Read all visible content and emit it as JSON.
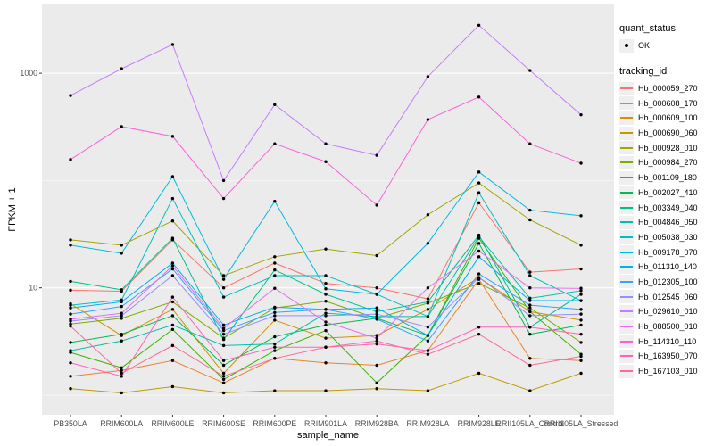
{
  "figure": {
    "background": "#ffffff",
    "panel_background": "#ebebeb",
    "grid_color": "#ffffff",
    "tick_label_color": "#4d4d4d",
    "point_color": "#000000"
  },
  "legend": {
    "quant_status": {
      "title": "quant_status",
      "items": [
        {
          "label": "OK"
        }
      ]
    },
    "tracking": {
      "title": "tracking_id"
    }
  },
  "chart_data": {
    "type": "line",
    "title": "",
    "xlabel": "sample_name",
    "ylabel": "FPKM + 1",
    "y_scale": "log10",
    "y_ticks": [
      10,
      1000
    ],
    "y_minor": [
      1,
      100
    ],
    "ylim_log": [
      1,
      3162
    ],
    "grid": true,
    "legend_position": "right",
    "point_shape": "filled-circle",
    "categories": [
      "PB350LA",
      "RRIM600LA",
      "RRIM600LE",
      "RRIM600SE",
      "RRIM600PE",
      "RRIM901LA",
      "RRIM928BA",
      "RRIM928LA",
      "RRIM928LE",
      "RRII105LA_Control",
      "RRII105LA_Stressed"
    ],
    "series": [
      {
        "name": "Hb_000059_270",
        "color": "#F8766D",
        "values": [
          9.5,
          9.3,
          28,
          10,
          17,
          11,
          10,
          7.9,
          62,
          14,
          15
        ]
      },
      {
        "name": "Hb_000608_170",
        "color": "#EA8331",
        "values": [
          1.5,
          1.7,
          2.1,
          1.3,
          2.2,
          2.0,
          1.9,
          2.6,
          12,
          2.2,
          2.1
        ]
      },
      {
        "name": "Hb_000609_100",
        "color": "#D89000",
        "values": [
          7.1,
          3.6,
          6.3,
          1.6,
          5.0,
          3.4,
          3.6,
          6.3,
          12.5,
          6.0,
          5.0
        ]
      },
      {
        "name": "Hb_000690_060",
        "color": "#C09B00",
        "values": [
          1.15,
          1.05,
          1.2,
          1.05,
          1.1,
          1.1,
          1.15,
          1.1,
          1.6,
          1.1,
          1.6
        ]
      },
      {
        "name": "Hb_000928_010",
        "color": "#A3A500",
        "values": [
          28,
          25,
          42,
          13,
          19.5,
          23,
          20,
          48,
          95,
          43,
          25
        ]
      },
      {
        "name": "Hb_000984_270",
        "color": "#7CAE00",
        "values": [
          4.6,
          5.2,
          7.4,
          3.4,
          6.5,
          7.5,
          5.2,
          7.2,
          11,
          6.5,
          3.1
        ]
      },
      {
        "name": "Hb_001109_180",
        "color": "#39B600",
        "values": [
          2.5,
          1.8,
          4.1,
          1.4,
          2.6,
          4.0,
          1.3,
          3.6,
          29,
          6.0,
          2.4
        ]
      },
      {
        "name": "Hb_002027_410",
        "color": "#00BB4E",
        "values": [
          3.1,
          3.7,
          5.5,
          1.9,
          3.5,
          4.5,
          5.2,
          3.6,
          26,
          3.7,
          4.5
        ]
      },
      {
        "name": "Hb_003349_040",
        "color": "#00C087",
        "values": [
          11.5,
          9.6,
          29,
          3.3,
          14.7,
          8.7,
          6.0,
          7.4,
          31,
          4.3,
          8.7
        ]
      },
      {
        "name": "Hb_004846_050",
        "color": "#00C1AB",
        "values": [
          2.6,
          3.2,
          4.5,
          2.9,
          3.0,
          5.8,
          5.4,
          5.4,
          30,
          8.0,
          9.4
        ]
      },
      {
        "name": "Hb_005038_030",
        "color": "#00BFC4",
        "values": [
          6.9,
          7.7,
          68,
          8.2,
          13,
          13,
          8.7,
          5.4,
          77,
          13,
          7.6
        ]
      },
      {
        "name": "Hb_009178_070",
        "color": "#00BAE0",
        "values": [
          25,
          21,
          109,
          12,
          64,
          9.8,
          8.7,
          26,
          120,
          53,
          47
        ]
      },
      {
        "name": "Hb_011310_140",
        "color": "#00B0F6",
        "values": [
          6.5,
          7.4,
          17,
          4.5,
          6.6,
          6.3,
          6.5,
          3.6,
          19.5,
          7.6,
          7.6
        ]
      },
      {
        "name": "Hb_012305_100",
        "color": "#35A2FF",
        "values": [
          5.7,
          6.7,
          15,
          4.0,
          5.9,
          6.3,
          5.1,
          3.2,
          13.5,
          6.9,
          6.3
        ]
      },
      {
        "name": "Hb_012545_060",
        "color": "#9590FF",
        "values": [
          4.9,
          5.5,
          13,
          3.7,
          5.5,
          5.5,
          5.7,
          4.3,
          12.5,
          5.5,
          5.7
        ]
      },
      {
        "name": "Hb_029610_010",
        "color": "#C77CFF",
        "values": [
          620,
          1100,
          1850,
          100,
          510,
          220,
          172,
          930,
          2800,
          1060,
          410
        ]
      },
      {
        "name": "Hb_088500_010",
        "color": "#E76BF3",
        "values": [
          5.1,
          5.8,
          16,
          4.2,
          9.9,
          4.8,
          3.4,
          10,
          22,
          10,
          9.9
        ]
      },
      {
        "name": "Hb_114310_110",
        "color": "#FA62DB",
        "values": [
          157,
          318,
          258,
          68,
          220,
          150,
          59,
          370,
          600,
          220,
          145
        ]
      },
      {
        "name": "Hb_163950_070",
        "color": "#FF62BC",
        "values": [
          2.0,
          1.5,
          8.2,
          2.1,
          2.8,
          2.8,
          3.0,
          2.6,
          4.3,
          4.3,
          3.7
        ]
      },
      {
        "name": "Hb_167103_010",
        "color": "#FF6A98",
        "values": [
          4.4,
          1.6,
          2.9,
          1.5,
          2.2,
          2.8,
          3.2,
          2.4,
          3.7,
          1.9,
          2.3
        ]
      }
    ]
  }
}
